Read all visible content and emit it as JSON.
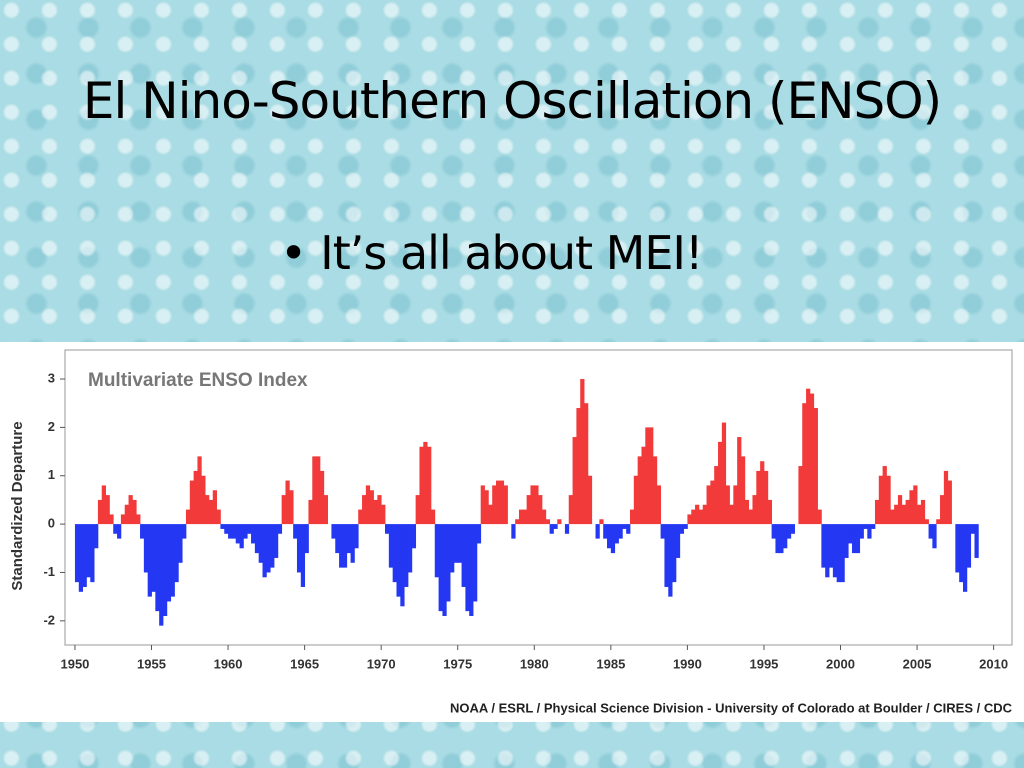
{
  "slide": {
    "title": "El Nino-Southern Oscillation (ENSO)",
    "bullets": [
      "It’s all about MEI!"
    ]
  },
  "chart_data": {
    "type": "bar",
    "title": "Multivariate ENSO Index",
    "y_label": "Standardized Departure",
    "source": "NOAA / ESRL / Physical Science Division - University of Colorado at Boulder / CIRES / CDC",
    "color_positive": "#f23a3a",
    "color_negative": "#2437f2",
    "grid": false,
    "xlim": [
      1949.35,
      2011.2
    ],
    "ylim": [
      -2.5,
      3.6
    ],
    "xticks": [
      1950,
      1955,
      1960,
      1965,
      1970,
      1975,
      1980,
      1985,
      1990,
      1995,
      2000,
      2005,
      2010
    ],
    "yticks": [
      -2,
      -1,
      0,
      1,
      2,
      3
    ],
    "x": [
      1950,
      1950.25,
      1950.5,
      1950.75,
      1951,
      1951.25,
      1951.5,
      1951.75,
      1952,
      1952.25,
      1952.5,
      1952.75,
      1953,
      1953.25,
      1953.5,
      1953.75,
      1954,
      1954.25,
      1954.5,
      1954.75,
      1955,
      1955.25,
      1955.5,
      1955.75,
      1956,
      1956.25,
      1956.5,
      1956.75,
      1957,
      1957.25,
      1957.5,
      1957.75,
      1958,
      1958.25,
      1958.5,
      1958.75,
      1959,
      1959.25,
      1959.5,
      1959.75,
      1960,
      1960.25,
      1960.5,
      1960.75,
      1961,
      1961.25,
      1961.5,
      1961.75,
      1962,
      1962.25,
      1962.5,
      1962.75,
      1963,
      1963.25,
      1963.5,
      1963.75,
      1964,
      1964.25,
      1964.5,
      1964.75,
      1965,
      1965.25,
      1965.5,
      1965.75,
      1966,
      1966.25,
      1966.5,
      1966.75,
      1967,
      1967.25,
      1967.5,
      1967.75,
      1968,
      1968.25,
      1968.5,
      1968.75,
      1969,
      1969.25,
      1969.5,
      1969.75,
      1970,
      1970.25,
      1970.5,
      1970.75,
      1971,
      1971.25,
      1971.5,
      1971.75,
      1972,
      1972.25,
      1972.5,
      1972.75,
      1973,
      1973.25,
      1973.5,
      1973.75,
      1974,
      1974.25,
      1974.5,
      1974.75,
      1975,
      1975.25,
      1975.5,
      1975.75,
      1976,
      1976.25,
      1976.5,
      1976.75,
      1977,
      1977.25,
      1977.5,
      1977.75,
      1978,
      1978.25,
      1978.5,
      1978.75,
      1979,
      1979.25,
      1979.5,
      1979.75,
      1980,
      1980.25,
      1980.5,
      1980.75,
      1981,
      1981.25,
      1981.5,
      1981.75,
      1982,
      1982.25,
      1982.5,
      1982.75,
      1983,
      1983.25,
      1983.5,
      1983.75,
      1984,
      1984.25,
      1984.5,
      1984.75,
      1985,
      1985.25,
      1985.5,
      1985.75,
      1986,
      1986.25,
      1986.5,
      1986.75,
      1987,
      1987.25,
      1987.5,
      1987.75,
      1988,
      1988.25,
      1988.5,
      1988.75,
      1989,
      1989.25,
      1989.5,
      1989.75,
      1990,
      1990.25,
      1990.5,
      1990.75,
      1991,
      1991.25,
      1991.5,
      1991.75,
      1992,
      1992.25,
      1992.5,
      1992.75,
      1993,
      1993.25,
      1993.5,
      1993.75,
      1994,
      1994.25,
      1994.5,
      1994.75,
      1995,
      1995.25,
      1995.5,
      1995.75,
      1996,
      1996.25,
      1996.5,
      1996.75,
      1997,
      1997.25,
      1997.5,
      1997.75,
      1998,
      1998.25,
      1998.5,
      1998.75,
      1999,
      1999.25,
      1999.5,
      1999.75,
      2000,
      2000.25,
      2000.5,
      2000.75,
      2001,
      2001.25,
      2001.5,
      2001.75,
      2002,
      2002.25,
      2002.5,
      2002.75,
      2003,
      2003.25,
      2003.5,
      2003.75,
      2004,
      2004.25,
      2004.5,
      2004.75,
      2005,
      2005.25,
      2005.5,
      2005.75,
      2006,
      2006.25,
      2006.5,
      2006.75,
      2007,
      2007.25,
      2007.5,
      2007.75,
      2008,
      2008.25,
      2008.5,
      2008.75
    ],
    "values": [
      -1.2,
      -1.4,
      -1.3,
      -1.1,
      -1.2,
      -0.5,
      0.5,
      0.8,
      0.6,
      0.2,
      -0.2,
      -0.3,
      0.2,
      0.4,
      0.6,
      0.5,
      0.2,
      -0.3,
      -1.0,
      -1.5,
      -1.4,
      -1.8,
      -2.1,
      -1.9,
      -1.6,
      -1.5,
      -1.2,
      -0.8,
      -0.3,
      0.3,
      0.9,
      1.1,
      1.4,
      1.0,
      0.6,
      0.5,
      0.7,
      0.3,
      -0.1,
      -0.2,
      -0.3,
      -0.3,
      -0.4,
      -0.5,
      -0.3,
      -0.2,
      -0.4,
      -0.6,
      -0.8,
      -1.1,
      -1.0,
      -0.9,
      -0.7,
      -0.2,
      0.6,
      0.9,
      0.7,
      -0.3,
      -1.0,
      -1.3,
      -0.6,
      0.5,
      1.4,
      1.4,
      1.1,
      0.6,
      0.0,
      -0.3,
      -0.6,
      -0.9,
      -0.9,
      -0.6,
      -0.8,
      -0.5,
      0.3,
      0.6,
      0.8,
      0.7,
      0.5,
      0.6,
      0.4,
      -0.2,
      -0.9,
      -1.2,
      -1.5,
      -1.7,
      -1.3,
      -1.0,
      -0.5,
      0.6,
      1.6,
      1.7,
      1.6,
      0.3,
      -1.1,
      -1.8,
      -1.9,
      -1.6,
      -1.0,
      -0.8,
      -0.8,
      -1.3,
      -1.8,
      -1.9,
      -1.6,
      -0.4,
      0.8,
      0.7,
      0.4,
      0.8,
      0.9,
      0.9,
      0.8,
      0.0,
      -0.3,
      0.1,
      0.3,
      0.3,
      0.6,
      0.8,
      0.8,
      0.6,
      0.3,
      0.1,
      -0.2,
      -0.1,
      0.1,
      0.0,
      -0.2,
      0.6,
      1.8,
      2.4,
      3.0,
      2.5,
      1.0,
      0.0,
      -0.3,
      0.1,
      -0.3,
      -0.5,
      -0.6,
      -0.4,
      -0.3,
      -0.1,
      -0.2,
      0.3,
      1.0,
      1.4,
      1.6,
      2.0,
      2.0,
      1.4,
      0.8,
      -0.3,
      -1.3,
      -1.5,
      -1.2,
      -0.7,
      -0.2,
      -0.1,
      0.2,
      0.3,
      0.4,
      0.3,
      0.4,
      0.8,
      0.9,
      1.2,
      1.7,
      2.1,
      0.8,
      0.4,
      0.8,
      1.8,
      1.4,
      0.5,
      0.3,
      0.6,
      1.1,
      1.3,
      1.1,
      0.5,
      -0.3,
      -0.6,
      -0.6,
      -0.5,
      -0.3,
      -0.2,
      0.0,
      1.2,
      2.5,
      2.8,
      2.7,
      2.4,
      0.3,
      -0.9,
      -1.1,
      -0.9,
      -1.1,
      -1.2,
      -1.2,
      -0.7,
      -0.4,
      -0.6,
      -0.6,
      -0.3,
      -0.1,
      -0.3,
      -0.1,
      0.5,
      1.0,
      1.2,
      1.0,
      0.3,
      0.4,
      0.6,
      0.4,
      0.5,
      0.7,
      0.8,
      0.4,
      0.5,
      0.1,
      -0.3,
      -0.5,
      0.1,
      0.6,
      1.1,
      0.9,
      0.0,
      -1.0,
      -1.2,
      -1.4,
      -0.9,
      -0.2,
      -0.7
    ]
  }
}
